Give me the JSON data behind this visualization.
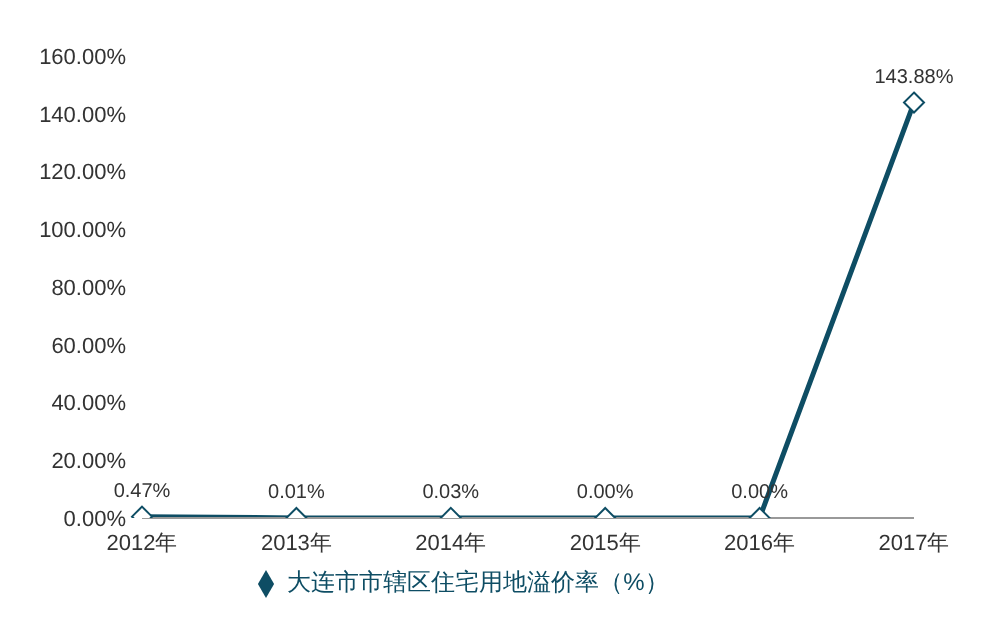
{
  "chart_data": {
    "type": "line",
    "categories": [
      "2012年",
      "2013年",
      "2014年",
      "2015年",
      "2016年",
      "2017年"
    ],
    "series": [
      {
        "name": "大连市市辖区住宅用地溢价率（%）",
        "color": "#0e4d64",
        "values": [
          0.47,
          0.01,
          0.03,
          0.0,
          0.0,
          143.88
        ],
        "value_labels": [
          "0.47%",
          "0.01%",
          "0.03%",
          "0.00%",
          "0.00%",
          "143.88%"
        ]
      }
    ],
    "ylim": [
      0,
      160
    ],
    "yticks": [
      {
        "value": 0,
        "label": "0.00%"
      },
      {
        "value": 20,
        "label": "20.00%"
      },
      {
        "value": 40,
        "label": "40.00%"
      },
      {
        "value": 60,
        "label": "60.00%"
      },
      {
        "value": 80,
        "label": "80.00%"
      },
      {
        "value": 100,
        "label": "100.00%"
      },
      {
        "value": 120,
        "label": "120.00%"
      },
      {
        "value": 140,
        "label": "140.00%"
      },
      {
        "value": 160,
        "label": "160.00%"
      }
    ],
    "grid": false,
    "legend": "bottom",
    "marker": "diamond",
    "line_style": "solid"
  }
}
